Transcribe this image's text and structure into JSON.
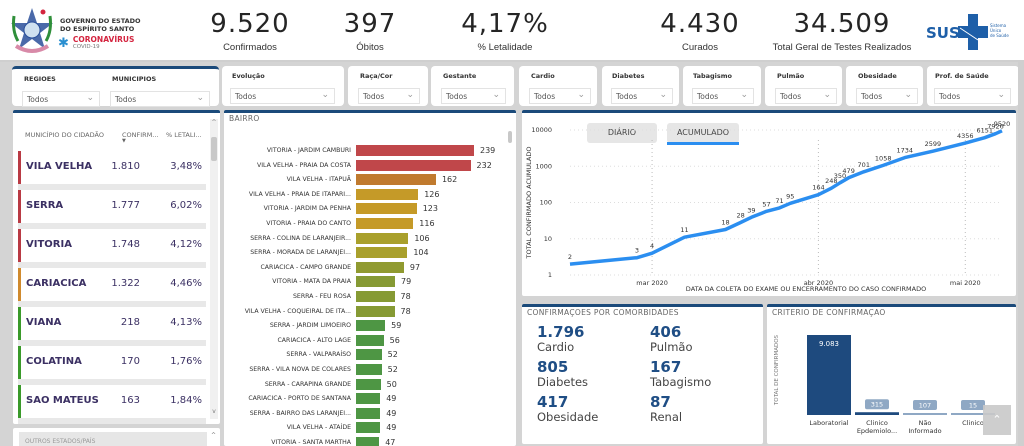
{
  "header": {
    "gov_line1": "GOVERNO DO ESTADO",
    "gov_line2": "DO ESPÍRITO SANTO",
    "covid_title": "CORONAVÍRUS",
    "covid_sub": "COVID-19",
    "sus_label": "SUS",
    "sus_sub1": "Sistema",
    "sus_sub2": "Único",
    "sus_sub3": "de Saúde"
  },
  "kpis": [
    {
      "value": "9.520",
      "label": "Confirmados"
    },
    {
      "value": "397",
      "label": "Óbitos"
    },
    {
      "value": "4,17%",
      "label": "% Letalidade"
    },
    {
      "value": "4.430",
      "label": "Curados"
    },
    {
      "value": "34.509",
      "label": "Total Geral de Testes Realizados"
    }
  ],
  "filters": [
    {
      "label": "REGIOES",
      "value": "Todos"
    },
    {
      "label": "MUNICIPIOS",
      "value": "Todos"
    },
    {
      "label": "Evolução",
      "value": "Todos"
    },
    {
      "label": "Raça/Cor",
      "value": "Todos"
    },
    {
      "label": "Gestante",
      "value": "Todos"
    },
    {
      "label": "Cardio",
      "value": "Todos"
    },
    {
      "label": "Diabetes",
      "value": "Todos"
    },
    {
      "label": "Tabagismo",
      "value": "Todos"
    },
    {
      "label": "Pulmão",
      "value": "Todos"
    },
    {
      "label": "Obesidade",
      "value": "Todos"
    },
    {
      "label": "Prof. de Saúde",
      "value": "Todos"
    }
  ],
  "municipios": {
    "col_name": "MUNICÍPIO DO CIDADÃO",
    "col_confirm": "CONFIRM...",
    "col_letal": "% LETALI...",
    "rows": [
      {
        "name": "VILA VELHA",
        "confirm": "1.810",
        "letal": "3,48%",
        "color": "#b93a44"
      },
      {
        "name": "SERRA",
        "confirm": "1.777",
        "letal": "6,02%",
        "color": "#b93a44"
      },
      {
        "name": "VITORIA",
        "confirm": "1.748",
        "letal": "4,12%",
        "color": "#b93a44"
      },
      {
        "name": "CARIACICA",
        "confirm": "1.322",
        "letal": "4,46%",
        "color": "#d08a2e"
      },
      {
        "name": "VIANA",
        "confirm": "218",
        "letal": "4,13%",
        "color": "#3a9a2a"
      },
      {
        "name": "COLATINA",
        "confirm": "170",
        "letal": "1,76%",
        "color": "#3a9a2a"
      },
      {
        "name": "SAO MATEUS",
        "confirm": "163",
        "letal": "1,84%",
        "color": "#3a9a2a"
      }
    ]
  },
  "bairro": {
    "title": "BAIRRO",
    "rows": [
      {
        "label": "VITORIA - JARDIM CAMBURI",
        "value": 239,
        "color": "#c0474a"
      },
      {
        "label": "VILA VELHA - PRAIA DA COSTA",
        "value": 232,
        "color": "#c0474a"
      },
      {
        "label": "VILA VELHA - ITAPUÃ",
        "value": 162,
        "color": "#c07a2e"
      },
      {
        "label": "VILA VELHA - PRAIA DE ITAPARI...",
        "value": 126,
        "color": "#c59a28"
      },
      {
        "label": "VITORIA - JARDIM DA PENHA",
        "value": 123,
        "color": "#c59a28"
      },
      {
        "label": "VITORIA - PRAIA DO CANTO",
        "value": 116,
        "color": "#c59a28"
      },
      {
        "label": "SERRA - COLINA DE LARANJEIR...",
        "value": 106,
        "color": "#a9a02c"
      },
      {
        "label": "SERRA - MORADA DE LARANJEI...",
        "value": 104,
        "color": "#a9a02c"
      },
      {
        "label": "CARIACICA - CAMPO GRANDE",
        "value": 97,
        "color": "#909a30"
      },
      {
        "label": "VITORIA - MATA DA PRAIA",
        "value": 79,
        "color": "#869a34"
      },
      {
        "label": "SERRA - FEU ROSA",
        "value": 78,
        "color": "#869a34"
      },
      {
        "label": "VILA VELHA - COQUEIRAL DE ITA...",
        "value": 78,
        "color": "#869a34"
      },
      {
        "label": "SERRA - JARDIM LIMOEIRO",
        "value": 59,
        "color": "#4e9644"
      },
      {
        "label": "CARIACICA - ALTO LAGE",
        "value": 56,
        "color": "#4e9644"
      },
      {
        "label": "SERRA - VALPARAÍSO",
        "value": 52,
        "color": "#4e9644"
      },
      {
        "label": "SERRA - VILA NOVA DE COLARES",
        "value": 52,
        "color": "#4e9644"
      },
      {
        "label": "SERRA - CARAPINA GRANDE",
        "value": 50,
        "color": "#4e9644"
      },
      {
        "label": "CARIACICA - PORTO DE SANTANA",
        "value": 49,
        "color": "#4e9644"
      },
      {
        "label": "SERRA - BAIRRO DAS LARANJEI...",
        "value": 49,
        "color": "#4e9644"
      },
      {
        "label": "VILA VELHA - ATAÍDE",
        "value": 49,
        "color": "#4e9644"
      },
      {
        "label": "VITORIA - SANTA MARTHA",
        "value": 47,
        "color": "#4e9644"
      }
    ]
  },
  "timeline": {
    "tab_daily": "DIÁRIO",
    "tab_cumulative": "ACUMULADO",
    "active_tab": "ACUMULADO"
  },
  "comorbidades": {
    "title": "CONFIRMAÇOES POR COMORBIDADES",
    "items": [
      {
        "value": "1.796",
        "label": "Cardio"
      },
      {
        "value": "406",
        "label": "Pulmão"
      },
      {
        "value": "805",
        "label": "Diabetes"
      },
      {
        "value": "167",
        "label": "Tabagismo"
      },
      {
        "value": "417",
        "label": "Obesidade"
      },
      {
        "value": "87",
        "label": "Renal"
      }
    ]
  },
  "criterio": {
    "title": "CRITERIO DE CONFIRMAÇAO",
    "ylabel": "TOTAL DE CONFIRMADOS",
    "bars": [
      {
        "label1": "Laboratorial",
        "label2": "",
        "value": 9083,
        "display": "9.083"
      },
      {
        "label1": "Clinico",
        "label2": "Epdemiolo...",
        "value": 315,
        "display": "315"
      },
      {
        "label1": "Não",
        "label2": "Informado",
        "value": 107,
        "display": "107"
      },
      {
        "label1": "Clinico",
        "label2": "",
        "value": 15,
        "display": "15"
      }
    ]
  },
  "other_panel": {
    "title": "OUTROS ESTADOS/PAÍS"
  },
  "chart_data": [
    {
      "type": "line",
      "title": "",
      "xlabel": "DATA DA COLETA DO EXAME OU ENCERRAMENTO DO CASO CONFIRMADO",
      "ylabel": "TOTAL CONFIRMADO ACUMULADO",
      "yscale": "log",
      "ylim": [
        1,
        10000
      ],
      "yticks": [
        "1",
        "10",
        "100",
        "1000",
        "10000"
      ],
      "xticks": [
        "mar 2020",
        "abr 2020",
        "mai 2020"
      ],
      "points": [
        {
          "label": "2",
          "value": 2,
          "x": 0.0
        },
        {
          "label": "3",
          "value": 3,
          "x": 0.155
        },
        {
          "label": "4",
          "value": 4,
          "x": 0.19
        },
        {
          "label": "11",
          "value": 11,
          "x": 0.265
        },
        {
          "label": "18",
          "value": 18,
          "x": 0.36
        },
        {
          "label": "28",
          "value": 28,
          "x": 0.395
        },
        {
          "label": "39",
          "value": 39,
          "x": 0.42
        },
        {
          "label": "57",
          "value": 57,
          "x": 0.455
        },
        {
          "label": "71",
          "value": 71,
          "x": 0.485
        },
        {
          "label": "95",
          "value": 95,
          "x": 0.51
        },
        {
          "label": "164",
          "value": 164,
          "x": 0.575
        },
        {
          "label": "248",
          "value": 248,
          "x": 0.605
        },
        {
          "label": "350",
          "value": 350,
          "x": 0.625
        },
        {
          "label": "479",
          "value": 479,
          "x": 0.645
        },
        {
          "label": "701",
          "value": 701,
          "x": 0.68
        },
        {
          "label": "1058",
          "value": 1058,
          "x": 0.725
        },
        {
          "label": "1734",
          "value": 1734,
          "x": 0.775
        },
        {
          "label": "2599",
          "value": 2599,
          "x": 0.84
        },
        {
          "label": "4356",
          "value": 4356,
          "x": 0.915
        },
        {
          "label": "6151",
          "value": 6151,
          "x": 0.96
        },
        {
          "label": "7926",
          "value": 7926,
          "x": 0.985
        },
        {
          "label": "9520",
          "value": 9520,
          "x": 1.0
        }
      ],
      "series_color": "#2b8ef0",
      "grid": true
    },
    {
      "type": "bar",
      "title": "CRITERIO DE CONFIRMAÇAO",
      "ylabel": "TOTAL DE CONFIRMADOS",
      "categories": [
        "Laboratorial",
        "Clinico Epdemiolo...",
        "Não Informado",
        "Clinico"
      ],
      "values": [
        9083,
        315,
        107,
        15
      ]
    },
    {
      "type": "bar",
      "title": "BAIRRO",
      "orientation": "horizontal",
      "categories": [
        "VITORIA - JARDIM CAMBURI",
        "VILA VELHA - PRAIA DA COSTA",
        "VILA VELHA - ITAPUÃ",
        "VILA VELHA - PRAIA DE ITAPARI...",
        "VITORIA - JARDIM DA PENHA",
        "VITORIA - PRAIA DO CANTO",
        "SERRA - COLINA DE LARANJEIR...",
        "SERRA - MORADA DE LARANJEI...",
        "CARIACICA - CAMPO GRANDE",
        "VITORIA - MATA DA PRAIA",
        "SERRA - FEU ROSA",
        "VILA VELHA - COQUEIRAL DE ITA...",
        "SERRA - JARDIM LIMOEIRO",
        "CARIACICA - ALTO LAGE",
        "SERRA - VALPARAÍSO",
        "SERRA - VILA NOVA DE COLARES",
        "SERRA - CARAPINA GRANDE",
        "CARIACICA - PORTO DE SANTANA",
        "SERRA - BAIRRO DAS LARANJEI...",
        "VILA VELHA - ATAÍDE",
        "VITORIA - SANTA MARTHA"
      ],
      "values": [
        239,
        232,
        162,
        126,
        123,
        116,
        106,
        104,
        97,
        79,
        78,
        78,
        59,
        56,
        52,
        52,
        50,
        49,
        49,
        49,
        47
      ]
    }
  ]
}
